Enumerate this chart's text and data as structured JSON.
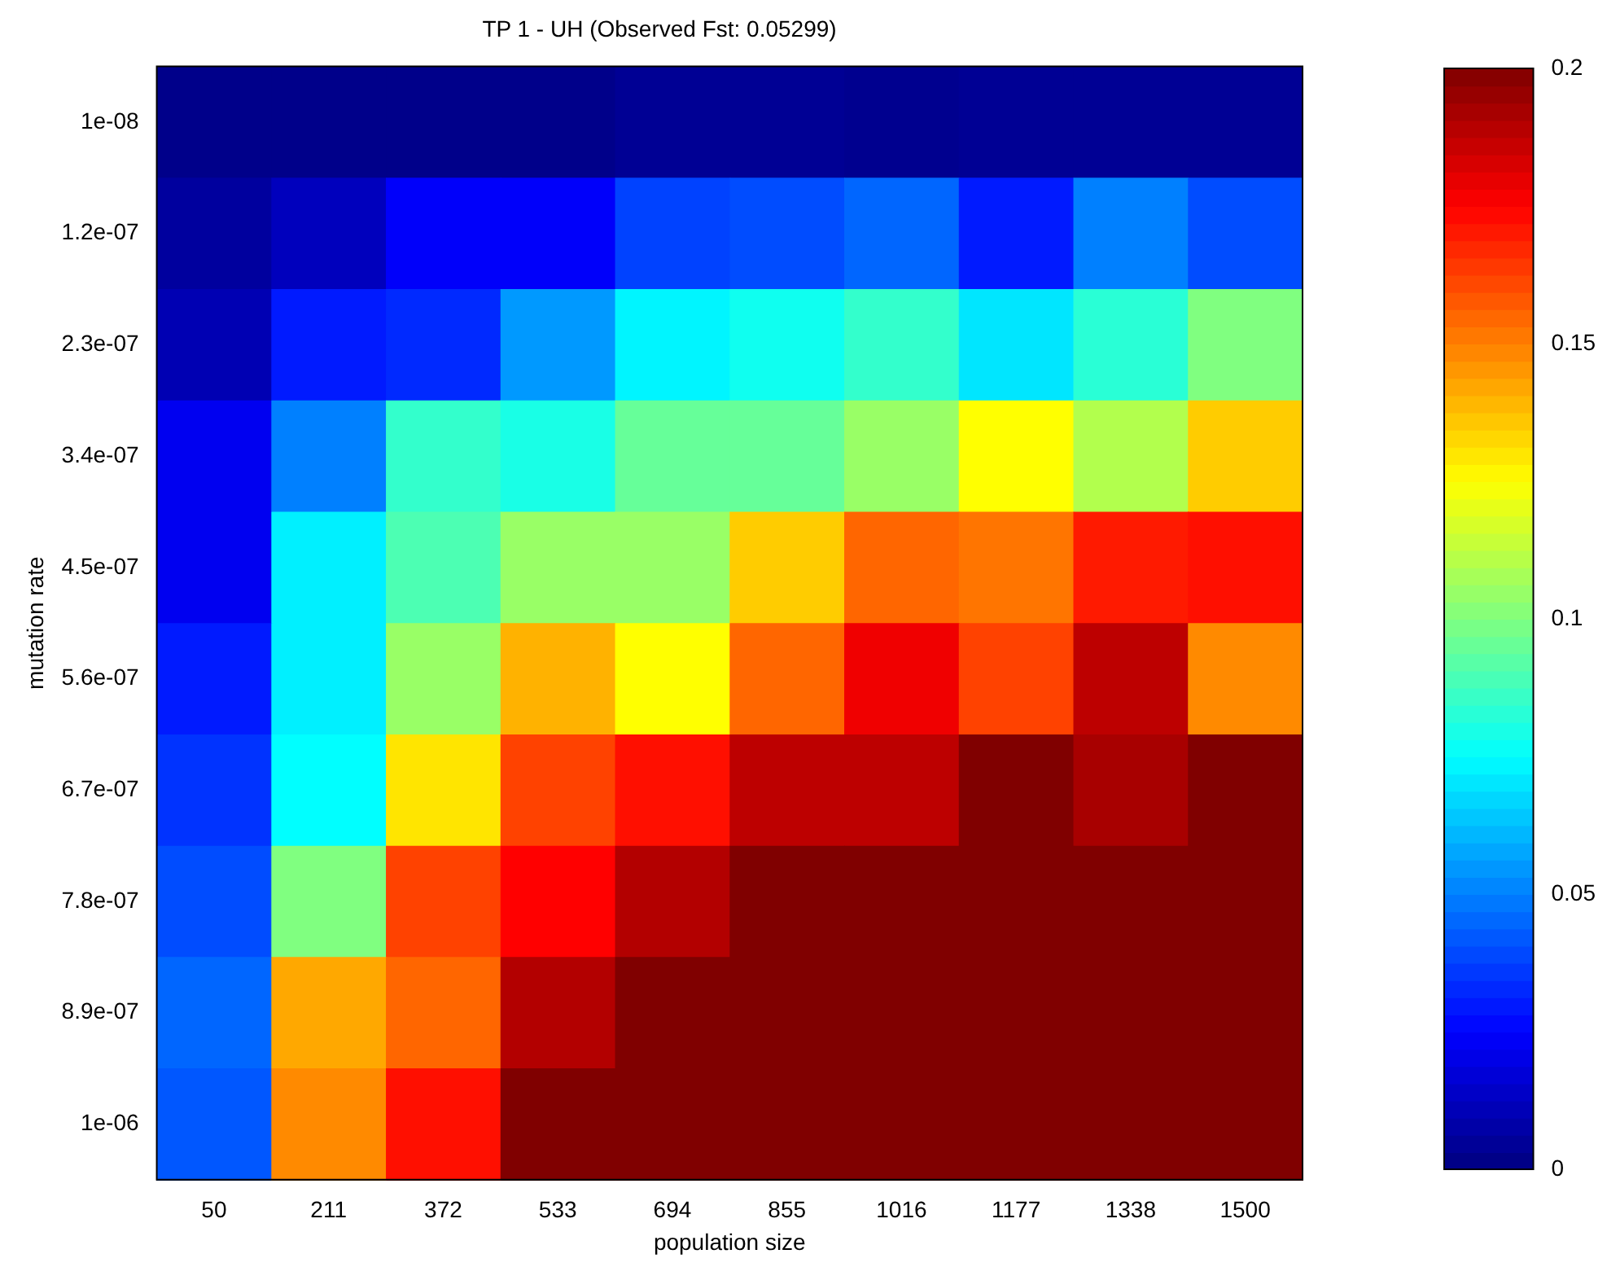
{
  "chart_data": {
    "type": "heatmap",
    "title": "TP 1 - UH (Observed Fst: 0.05299)",
    "xlabel": "population size",
    "ylabel": "mutation rate",
    "categories": [
      "50",
      "211",
      "372",
      "533",
      "694",
      "855",
      "1016",
      "1177",
      "1338",
      "1500"
    ],
    "y_categories": [
      "1e-08",
      "1.2e-07",
      "2.3e-07",
      "3.4e-07",
      "4.5e-07",
      "5.6e-07",
      "6.7e-07",
      "7.8e-07",
      "8.9e-07",
      "1e-06"
    ],
    "cells": [
      [
        0.002,
        0.002,
        0.002,
        0.002,
        0.004,
        0.004,
        0.003,
        0.004,
        0.004,
        0.004
      ],
      [
        0.006,
        0.012,
        0.024,
        0.024,
        0.038,
        0.04,
        0.045,
        0.03,
        0.05,
        0.04
      ],
      [
        0.01,
        0.03,
        0.033,
        0.055,
        0.073,
        0.078,
        0.085,
        0.07,
        0.083,
        0.1
      ],
      [
        0.022,
        0.05,
        0.085,
        0.08,
        0.095,
        0.095,
        0.105,
        0.125,
        0.11,
        0.135
      ],
      [
        0.022,
        0.072,
        0.09,
        0.105,
        0.105,
        0.135,
        0.155,
        0.152,
        0.17,
        0.172
      ],
      [
        0.03,
        0.072,
        0.105,
        0.14,
        0.125,
        0.155,
        0.178,
        0.162,
        0.188,
        0.148
      ],
      [
        0.035,
        0.075,
        0.13,
        0.162,
        0.172,
        0.188,
        0.188,
        0.2,
        0.192,
        0.2
      ],
      [
        0.04,
        0.1,
        0.162,
        0.175,
        0.19,
        0.2,
        0.2,
        0.2,
        0.2,
        0.2
      ],
      [
        0.045,
        0.142,
        0.155,
        0.19,
        0.2,
        0.2,
        0.2,
        0.2,
        0.2,
        0.2
      ],
      [
        0.042,
        0.148,
        0.172,
        0.2,
        0.2,
        0.2,
        0.2,
        0.2,
        0.2,
        0.2
      ]
    ],
    "clim": [
      0,
      0.2
    ],
    "cticks": [
      0,
      0.05,
      0.1,
      0.15,
      0.2
    ]
  }
}
